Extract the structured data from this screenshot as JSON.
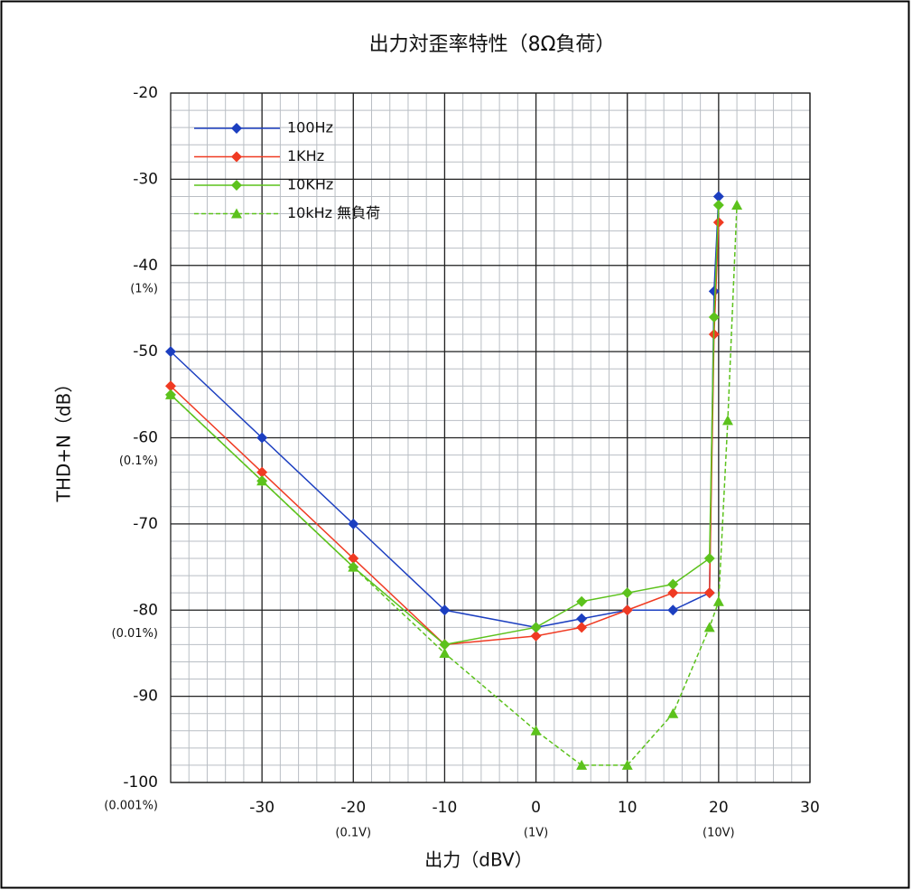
{
  "chart_data": {
    "type": "line",
    "title": "出力対歪率特性（8Ω負荷）",
    "xlabel": "出力（dBV）",
    "ylabel": "THD+N（dB）",
    "xlim": [
      -40,
      30
    ],
    "ylim": [
      -100,
      -20
    ],
    "xticks": [
      -30,
      -20,
      -10,
      0,
      10,
      20,
      30
    ],
    "yticks": [
      -100,
      -90,
      -80,
      -70,
      -60,
      -50,
      -40,
      -30,
      -20
    ],
    "x_sublabels": [
      {
        "value": -20,
        "label": "(0.1V)"
      },
      {
        "value": 0,
        "label": "(1V)"
      },
      {
        "value": 20,
        "label": "(10V)"
      }
    ],
    "y_sublabels": [
      {
        "value": -40,
        "label": "(1%)"
      },
      {
        "value": -60,
        "label": "(0.1%)"
      },
      {
        "value": -80,
        "label": "(0.01%)"
      },
      {
        "value": -100,
        "label": "(0.001%)"
      }
    ],
    "grid": true,
    "minor_grid_step": 2,
    "legend": "upper left",
    "series": [
      {
        "name": "100Hz",
        "color": "#1c3fc0",
        "linestyle": "solid",
        "marker": "diamond",
        "x": [
          -40,
          -30,
          -20,
          -10,
          0,
          5,
          10,
          15,
          19,
          19.5,
          20
        ],
        "values": [
          -50,
          -60,
          -70,
          -80,
          -82,
          -81,
          -80,
          -80,
          -78,
          -43,
          -32
        ]
      },
      {
        "name": "1KHz",
        "color": "#f03a22",
        "linestyle": "solid",
        "marker": "diamond",
        "x": [
          -40,
          -30,
          -20,
          -10,
          0,
          5,
          10,
          15,
          19,
          19.5,
          20
        ],
        "values": [
          -54,
          -64,
          -74,
          -84,
          -83,
          -82,
          -80,
          -78,
          -78,
          -48,
          -35
        ]
      },
      {
        "name": "10KHz",
        "color": "#5cc21c",
        "linestyle": "solid",
        "marker": "diamond",
        "x": [
          -40,
          -30,
          -20,
          -10,
          0,
          5,
          10,
          15,
          19,
          19.5,
          20
        ],
        "values": [
          -55,
          -65,
          -75,
          -84,
          -82,
          -79,
          -78,
          -77,
          -74,
          -46,
          -33
        ]
      },
      {
        "name": "10kHz 無負荷",
        "color": "#5cc21c",
        "linestyle": "dashed",
        "marker": "triangle",
        "x": [
          -40,
          -30,
          -20,
          -10,
          0,
          5,
          10,
          15,
          19,
          20,
          21,
          22
        ],
        "values": [
          -55,
          -65,
          -75,
          -85,
          -94,
          -98,
          -98,
          -92,
          -82,
          -79,
          -58,
          -33
        ]
      }
    ]
  }
}
